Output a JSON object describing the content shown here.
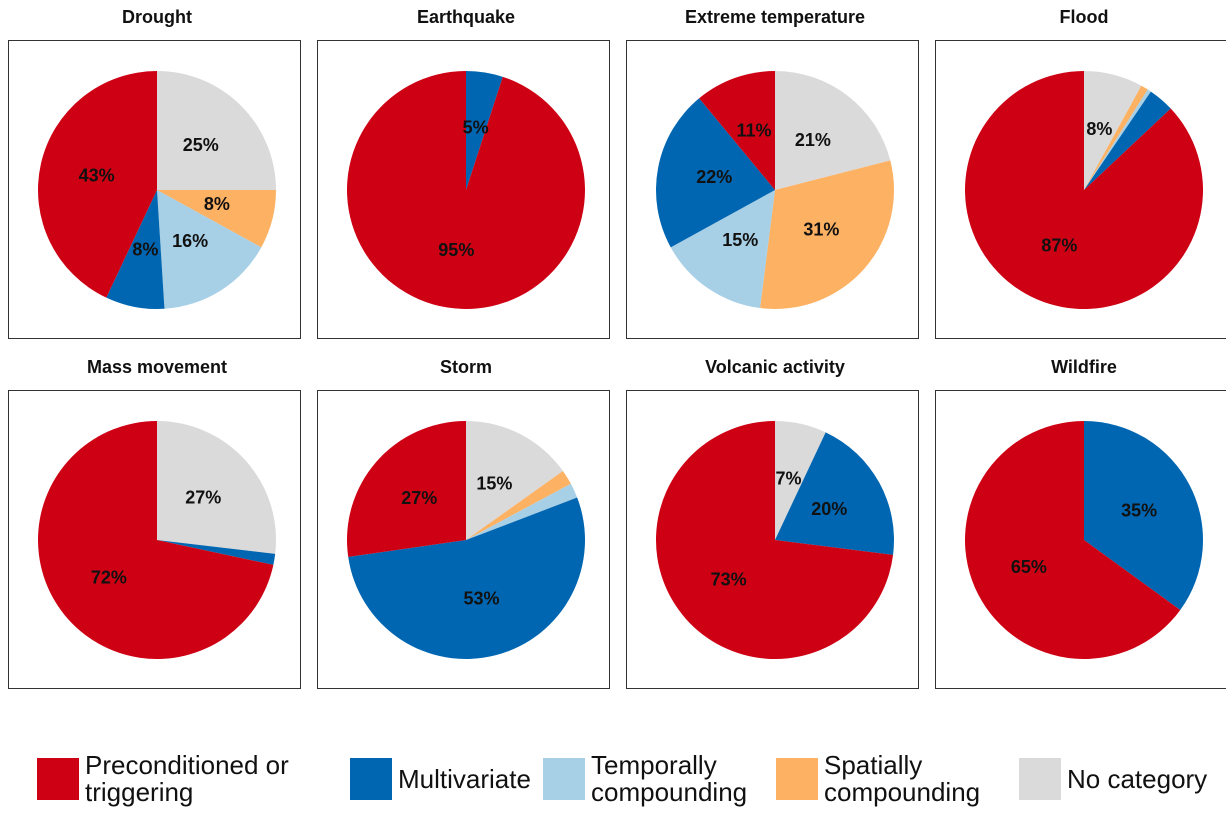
{
  "legend": {
    "categories": [
      "Preconditioned or triggering",
      "Multivariate",
      "Temporally compounding",
      "Spatially compounding",
      "No category"
    ],
    "colors": [
      "#ce0014",
      "#0166b1",
      "#a7cfe6",
      "#fdb163",
      "#dadada"
    ]
  },
  "chart_data": [
    {
      "type": "pie",
      "title": "Drought",
      "values": [
        43,
        8,
        16,
        8,
        25
      ],
      "value_labels": [
        "43%",
        "8%",
        "16%",
        "8%",
        "25%"
      ]
    },
    {
      "type": "pie",
      "title": "Earthquake",
      "values": [
        95,
        5,
        0,
        0,
        0
      ],
      "value_labels": [
        "95%",
        "5%",
        null,
        null,
        null
      ]
    },
    {
      "type": "pie",
      "title": "Extreme temperature",
      "values": [
        11,
        22,
        15,
        31,
        21
      ],
      "value_labels": [
        "11%",
        "22%",
        "15%",
        "31%",
        "21%"
      ]
    },
    {
      "type": "pie",
      "title": "Flood",
      "values": [
        87,
        3.5,
        0.5,
        1,
        8
      ],
      "value_labels": [
        "87%",
        null,
        null,
        null,
        "8%"
      ]
    },
    {
      "type": "pie",
      "title": "Mass movement",
      "values": [
        72,
        1.5,
        0,
        0,
        27
      ],
      "value_labels": [
        "72%",
        null,
        null,
        null,
        "27%"
      ]
    },
    {
      "type": "pie",
      "title": "Storm",
      "values": [
        27,
        53,
        2,
        2,
        15
      ],
      "value_labels": [
        "27%",
        "53%",
        null,
        null,
        "15%"
      ]
    },
    {
      "type": "pie",
      "title": "Volcanic activity",
      "values": [
        73,
        20,
        0,
        0,
        7
      ],
      "value_labels": [
        "73%",
        "20%",
        null,
        null,
        "7%"
      ]
    },
    {
      "type": "pie",
      "title": "Wildfire",
      "values": [
        65,
        35,
        0,
        0,
        0
      ],
      "value_labels": [
        "65%",
        "35%",
        null,
        null,
        null
      ]
    }
  ]
}
